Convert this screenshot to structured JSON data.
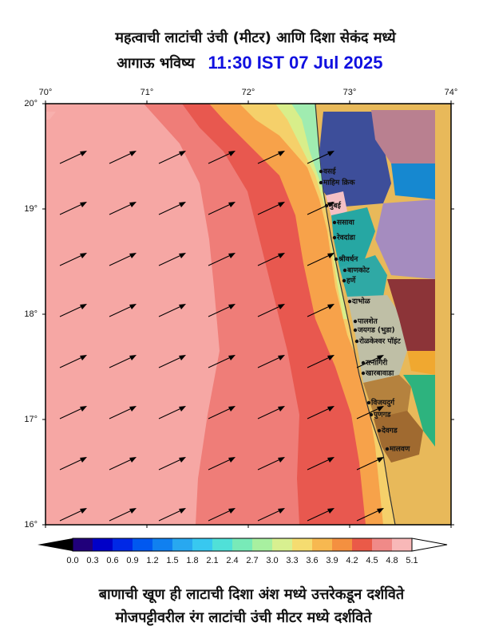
{
  "header": {
    "title": "महत्वाची लाटांची उंची (मीटर) आणि दिशा सेकंद मध्ये",
    "subtitle": "आगाऊ भविष्य",
    "time": "11:30 IST 07 Jul 2025"
  },
  "axes": {
    "lon": [
      "70°",
      "71°",
      "72°",
      "73°",
      "74°"
    ],
    "lat": [
      "20°",
      "19°",
      "18°",
      "17°",
      "16°"
    ]
  },
  "colorbar": {
    "labels": [
      "0.0",
      "0.3",
      "0.6",
      "0.9",
      "1.2",
      "1.5",
      "1.8",
      "2.1",
      "2.4",
      "2.7",
      "3.0",
      "3.3",
      "3.6",
      "3.9",
      "4.2",
      "4.5",
      "4.8",
      "5.1"
    ]
  },
  "places": [
    "वसई",
    "माहिम क्रिक",
    "मुंबई",
    "ससावा",
    "रेवदांडा",
    "श्रीवर्धन",
    "बाणकोट",
    "हर्णे",
    "दाभोळ",
    "पालशेत",
    "जयगड (भुडा)",
    "रोळकेश्वर पॉइंट",
    "रत्नागिरी",
    "खारबावाडा",
    "विजयदुर्ग",
    "पुणगड",
    "देवगड",
    "मालवण"
  ],
  "footer": {
    "line1": "बाणाची खूण ही लाटाची दिशा अंश मध्ये उत्तरेकडून दर्शविते",
    "line2": "मोजपट्टीवरील रंग लाटांची उंची मीटर मध्ये दर्शविते"
  }
}
